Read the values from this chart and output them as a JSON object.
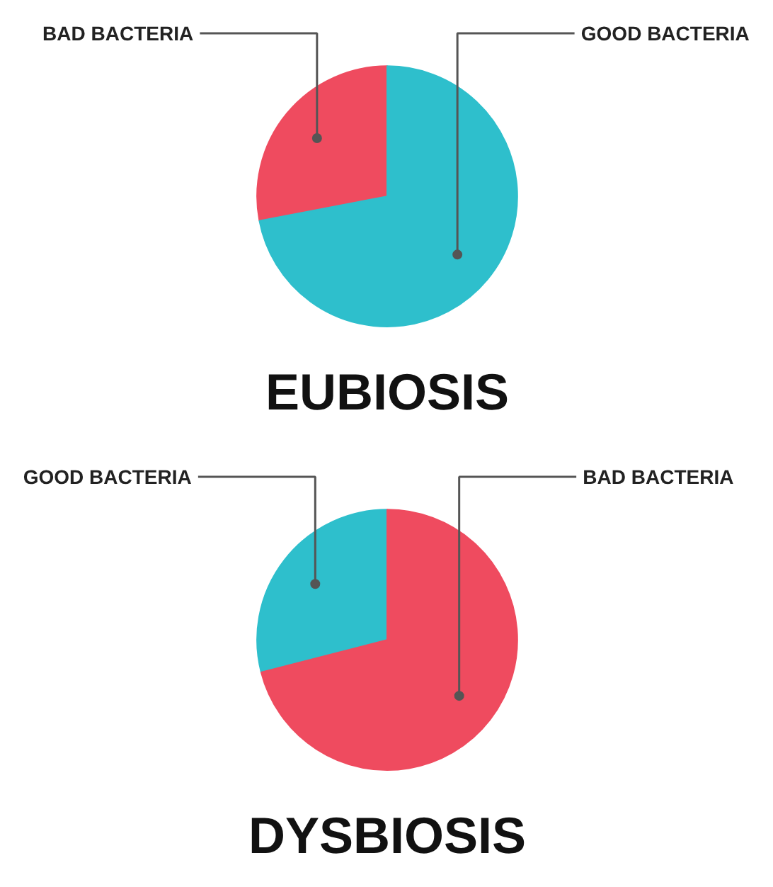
{
  "chart_data": [
    {
      "type": "pie",
      "title": "EUBIOSIS",
      "categories": [
        "BAD BACTERIA",
        "GOOD BACTERIA"
      ],
      "values": [
        28,
        72
      ],
      "colors": [
        "#ef4b5f",
        "#2ebfcc"
      ],
      "legend": false
    },
    {
      "type": "pie",
      "title": "DYSBIOSIS",
      "categories": [
        "GOOD BACTERIA",
        "BAD BACTERIA"
      ],
      "values": [
        29,
        71
      ],
      "colors": [
        "#2ebfcc",
        "#ef4b5f"
      ],
      "legend": false
    }
  ]
}
